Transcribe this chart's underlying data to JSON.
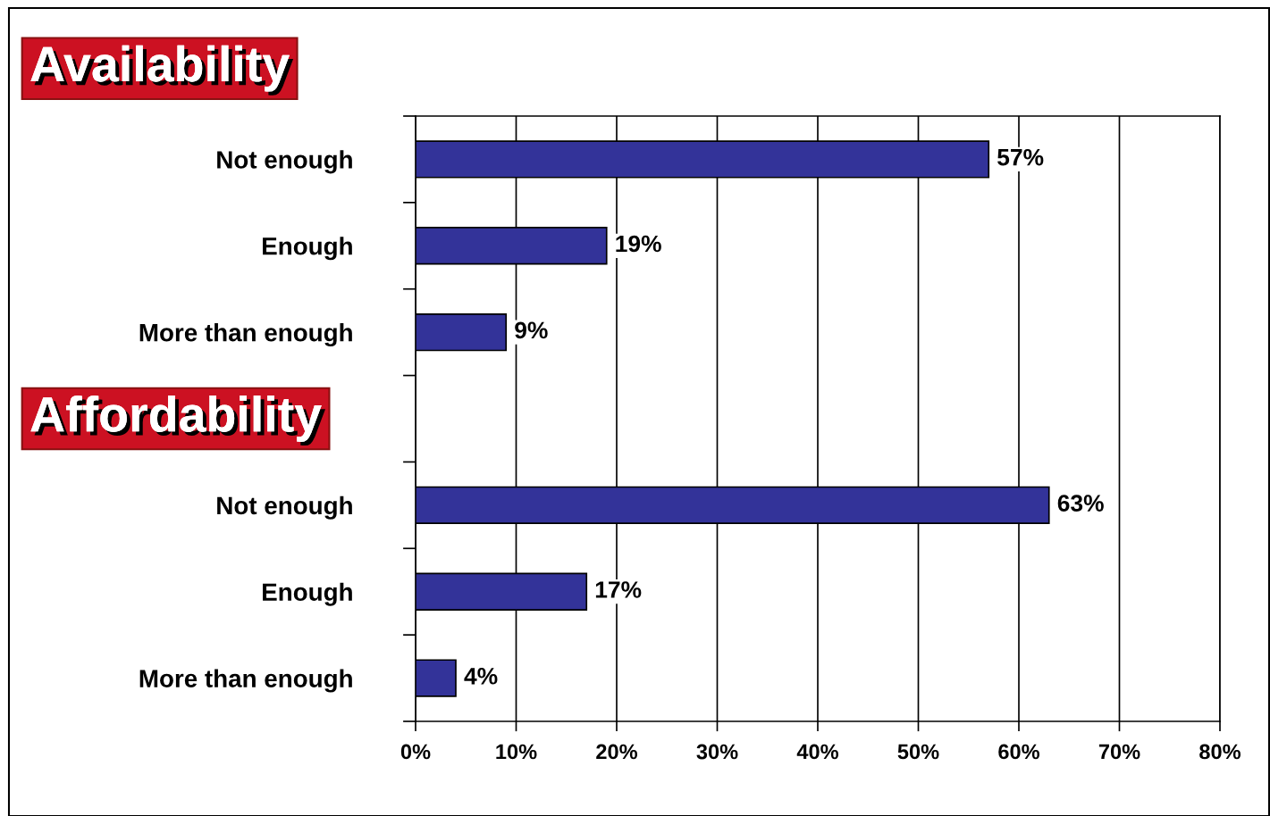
{
  "chart_data": {
    "type": "bar",
    "orientation": "horizontal",
    "categories": [
      "Not enough",
      "Enough",
      "More than enough",
      null,
      "Not enough",
      "Enough",
      "More than enough"
    ],
    "values": [
      57,
      19,
      9,
      null,
      63,
      17,
      4
    ],
    "value_labels": [
      "57%",
      "19%",
      "9%",
      null,
      "63%",
      "17%",
      "4%"
    ],
    "color": "#333399",
    "xlim": [
      0,
      80
    ],
    "xticks": [
      {
        "value": 0,
        "label": "0%"
      },
      {
        "value": 10,
        "label": "10%"
      },
      {
        "value": 20,
        "label": "20%"
      },
      {
        "value": 30,
        "label": "30%"
      },
      {
        "value": 40,
        "label": "40%"
      },
      {
        "value": 50,
        "label": "50%"
      },
      {
        "value": 60,
        "label": "60%"
      },
      {
        "value": 70,
        "label": "70%"
      },
      {
        "value": 80,
        "label": "80%"
      }
    ],
    "grid": "x",
    "annotations": [
      "Availability",
      "Affordability"
    ]
  }
}
